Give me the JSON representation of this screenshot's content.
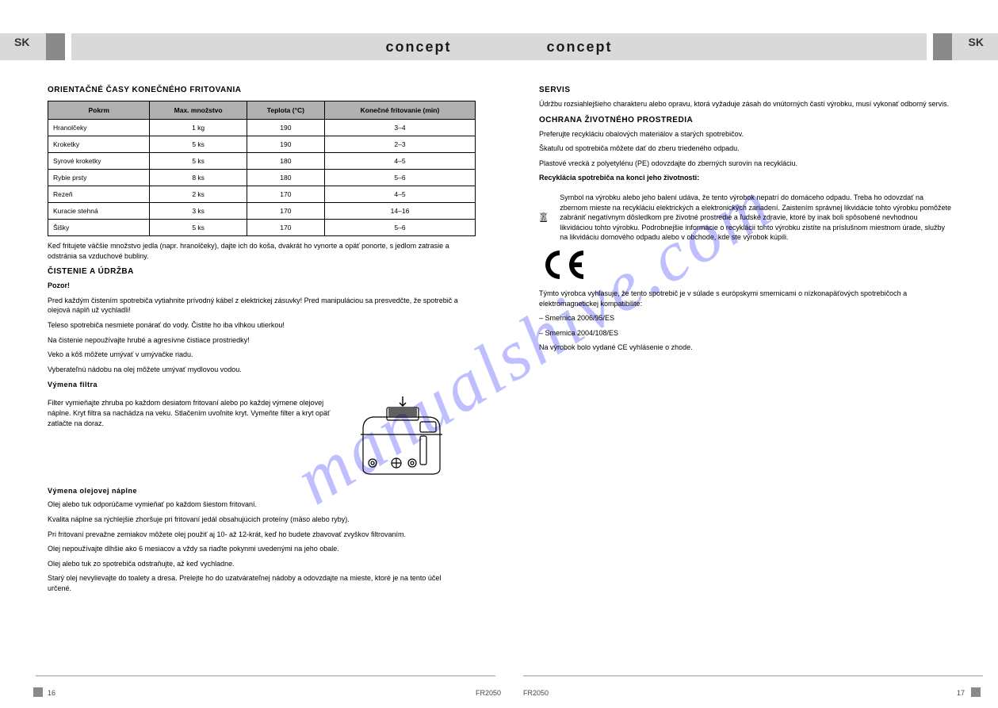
{
  "brand": "concept",
  "lang_left": "SK",
  "lang_right": "SK",
  "watermark": "manualshive.com",
  "model": "FR2050",
  "page_left_num": "16",
  "page_right_num": "17",
  "colors": {
    "header_bg": "#d9d9d9",
    "header_dark": "#8a8a8a",
    "table_header": "#b0b0b0",
    "text": "#1a1a1a",
    "watermark": "#8b8bff"
  },
  "left": {
    "times_title": "ORIENTAČNÉ ČASY KONEČNÉHO FRITOVANIA",
    "table": {
      "columns": [
        "Pokrm",
        "Max. množstvo",
        "Teplota (°C)",
        "Konečné fritovanie (min)"
      ],
      "rows": [
        [
          "Hranolčeky",
          "1 kg",
          "190",
          "3–4"
        ],
        [
          "Kroketky",
          "5 ks",
          "190",
          "2–3"
        ],
        [
          "Syrové kroketky",
          "5 ks",
          "180",
          "4–5"
        ],
        [
          "Rybie prsty",
          "8 ks",
          "180",
          "5–6"
        ],
        [
          "Rezeň",
          "2 ks",
          "170",
          "4–5"
        ],
        [
          "Kuracie stehná",
          "3 ks",
          "170",
          "14–16"
        ],
        [
          "Šišky",
          "5 ks",
          "170",
          "5–6"
        ]
      ]
    },
    "note1": "Keď fritujete väčšie množstvo jedla (napr. hranolčeky), dajte ich do koša, dvakrát ho vynorte a opäť ponorte, s jedlom zatrasie a odstránia sa vzduchové bubliny.",
    "maintain_title": "ČISTENIE A ÚDRŽBA",
    "maintain_bold1": "Pozor!",
    "maintain_p1": "Pred každým čistením spotrebiča vytiahnite prívodný kábel z elektrickej zásuvky! Pred manipuláciou sa presvedčte, že spotrebič a olejová náplň už vychladli!",
    "maintain_p2": "Teleso spotrebiča nesmiete ponárať do vody. Čistite ho iba vlhkou utierkou!",
    "maintain_p3": "Na čistenie nepoužívajte hrubé a agresívne čistiace prostriedky!",
    "maintain_p4": "Veko a kôš môžete umývať v umývačke riadu.",
    "maintain_p5": "Vyberateľnú nádobu na olej môžete umývať mydlovou vodou.",
    "filter_title": "Výmena filtra",
    "filter_text": "Filter vymieňajte zhruba po každom desiatom fritovaní alebo po každej výmene olejovej náplne. Kryt filtra sa nachádza na veku. Stlačením uvoľnite kryt. Vymeňte filter a kryt opäť zatlačte na doraz.",
    "oil_title": "Výmena olejovej náplne",
    "oil_p1": "Olej alebo tuk odporúčame vymieňať po každom šiestom fritovaní.",
    "oil_p2": "Kvalita náplne sa rýchlejšie zhoršuje pri fritovaní jedál obsahujúcich proteíny (mäso alebo ryby).",
    "oil_p3": "Pri fritovaní prevažne zemiakov môžete olej použiť aj 10- až 12-krát, keď ho budete zbavovať zvyškov filtrovaním.",
    "oil_p4": "Olej nepoužívajte dlhšie ako 6 mesiacov a vždy sa riaďte pokynmi uvedenými na jeho obale.",
    "oil_p5": "Olej alebo tuk zo spotrebiča odstraňujte, až keď vychladne.",
    "oil_p6": "Starý olej nevylievajte do toalety a dresa. Prelejte ho do uzatvárateľnej nádoby a odovzdajte na mieste, ktoré je na tento účel určené."
  },
  "right": {
    "service_title": "SERVIS",
    "service_text": "Údržbu rozsiahlejšieho charakteru alebo opravu, ktorá vyžaduje zásah do vnútorných častí výrobku, musí vykonať odborný servis.",
    "env_title": "OCHRANA ŽIVOTNÉHO PROSTREDIA",
    "env_b1": "Preferujte recykláciu obalových materiálov a starých spotrebičov.",
    "env_b2": "Škatuľu od spotrebiča môžete dať do zberu triedeného odpadu.",
    "env_b3": "Plastové vrecká z polyetylénu (PE) odovzdajte do zberných surovín na recykláciu.",
    "recycle_title": "Recyklácia spotrebiča na konci jeho životnosti:",
    "recycle_text": "Symbol na výrobku alebo jeho balení udáva, že tento výrobok nepatrí do domáceho odpadu. Treba ho odovzdať na zbernom mieste na recykláciu elektrických a elektronických zariadení. Zaistením správnej likvidácie tohto výrobku pomôžete zabrániť negatívnym dôsledkom pre životné prostredie a ľudské zdravie, ktoré by inak boli spôsobené nevhodnou likvidáciou tohto výrobku. Podrobnejšie informácie o recyklácii tohto výrobku zistíte na príslušnom miestnom úrade, služby na likvidáciu domového odpadu alebo v obchode, kde ste výrobok kúpili.",
    "ce_text": "Týmto výrobca vyhlasuje, že tento spotrebič je v súlade s európskymi smernicami o nízkonapäťových spotrebičoch a elektromagnetickej kompatibilite:",
    "ce_l1": "– Smernica 2006/95/ES",
    "ce_l2": "– Smernica 2004/108/ES",
    "ce_last": "Na výrobok bolo vydané CE vyhlásenie o zhode."
  }
}
